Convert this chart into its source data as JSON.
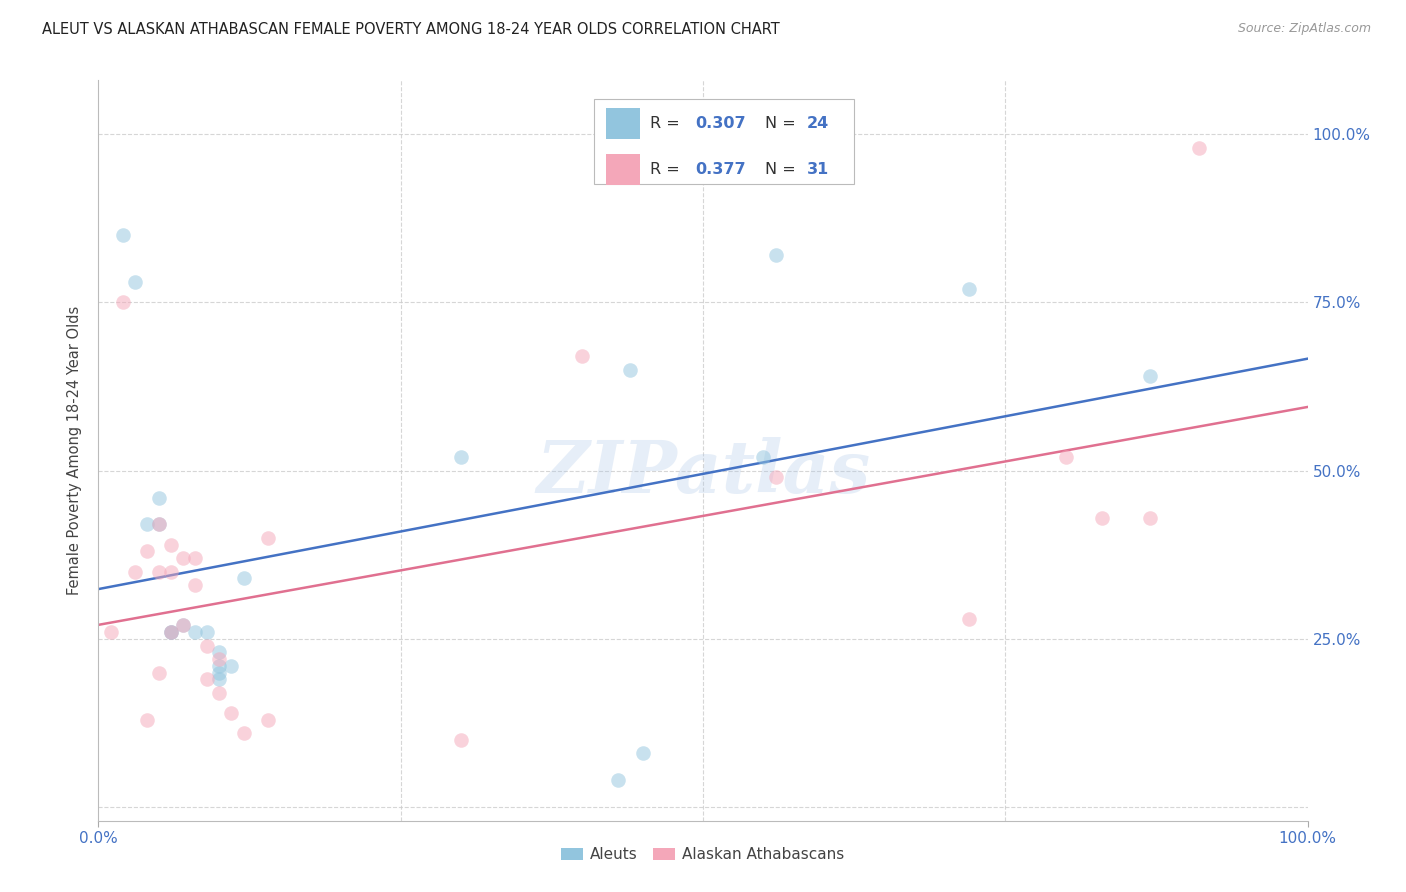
{
  "title": "ALEUT VS ALASKAN ATHABASCAN FEMALE POVERTY AMONG 18-24 YEAR OLDS CORRELATION CHART",
  "source": "Source: ZipAtlas.com",
  "ylabel": "Female Poverty Among 18-24 Year Olds",
  "xlim": [
    0,
    1
  ],
  "ylim": [
    -0.02,
    1.08
  ],
  "aleuts_color": "#92c5de",
  "athabascan_color": "#f4a7b9",
  "aleuts_R": 0.307,
  "aleuts_N": 24,
  "athabascan_R": 0.377,
  "athabascan_N": 31,
  "aleuts_line_color": "#4472c4",
  "athabascan_line_color": "#e07090",
  "watermark": "ZIPatlas",
  "aleuts_x": [
    0.02,
    0.03,
    0.04,
    0.05,
    0.05,
    0.06,
    0.06,
    0.07,
    0.08,
    0.09,
    0.1,
    0.1,
    0.1,
    0.1,
    0.11,
    0.12,
    0.3,
    0.43,
    0.45,
    0.56,
    0.72,
    0.87,
    0.55,
    0.44
  ],
  "aleuts_y": [
    0.85,
    0.78,
    0.42,
    0.46,
    0.42,
    0.26,
    0.26,
    0.27,
    0.26,
    0.26,
    0.23,
    0.21,
    0.2,
    0.19,
    0.21,
    0.34,
    0.52,
    0.04,
    0.08,
    0.82,
    0.77,
    0.64,
    0.52,
    0.65
  ],
  "athabascan_x": [
    0.01,
    0.02,
    0.03,
    0.04,
    0.05,
    0.05,
    0.06,
    0.06,
    0.07,
    0.07,
    0.08,
    0.08,
    0.09,
    0.09,
    0.1,
    0.1,
    0.11,
    0.12,
    0.14,
    0.14,
    0.3,
    0.4,
    0.56,
    0.72,
    0.8,
    0.83,
    0.87,
    0.91,
    0.04,
    0.05,
    0.06
  ],
  "athabascan_y": [
    0.26,
    0.75,
    0.35,
    0.38,
    0.42,
    0.35,
    0.39,
    0.26,
    0.27,
    0.37,
    0.33,
    0.37,
    0.24,
    0.19,
    0.22,
    0.17,
    0.14,
    0.11,
    0.13,
    0.4,
    0.1,
    0.67,
    0.49,
    0.28,
    0.52,
    0.43,
    0.43,
    0.98,
    0.13,
    0.2,
    0.35
  ],
  "marker_size": 110,
  "alpha": 0.5,
  "background_color": "#ffffff",
  "grid_color": "#cccccc",
  "grid_style": "--",
  "grid_alpha": 0.8
}
